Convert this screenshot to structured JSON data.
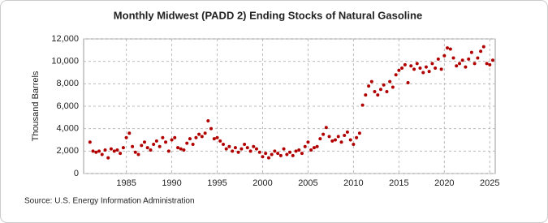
{
  "chart_data": {
    "type": "scatter",
    "title": "Monthly Midwest (PADD 2) Ending Stocks of Natural Gasoline",
    "y_label": "Thousand Barrels",
    "source": "Source: U.S. Energy Information Administration",
    "color": "#b00000",
    "grid": true,
    "xlim": [
      1980.3,
      2025.6
    ],
    "xticks": [
      1985,
      1990,
      1995,
      2000,
      2005,
      2010,
      2015,
      2020,
      2025
    ],
    "ylim": [
      0,
      12000
    ],
    "yticks": [
      0,
      {
        "value": 2000,
        "label": "2,000"
      },
      {
        "value": 4000,
        "label": "4,000"
      },
      {
        "value": 6000,
        "label": "6,000"
      },
      {
        "value": 8000,
        "label": "8,000"
      },
      {
        "value": 10000,
        "label": "10,000"
      },
      {
        "value": 12000,
        "label": "12,000"
      }
    ],
    "x": [
      1981,
      1981.33,
      1981.67,
      1982,
      1982.33,
      1982.67,
      1983,
      1983.33,
      1983.67,
      1984,
      1984.33,
      1984.67,
      1985,
      1985.33,
      1985.67,
      1986,
      1986.33,
      1986.67,
      1987,
      1987.33,
      1987.67,
      1988,
      1988.33,
      1988.67,
      1989,
      1989.33,
      1989.67,
      1990,
      1990.33,
      1990.67,
      1991,
      1991.33,
      1991.67,
      1992,
      1992.33,
      1992.67,
      1993,
      1993.33,
      1993.67,
      1994,
      1994.33,
      1994.67,
      1995,
      1995.33,
      1995.67,
      1996,
      1996.33,
      1996.67,
      1997,
      1997.33,
      1997.67,
      1998,
      1998.33,
      1998.67,
      1999,
      1999.33,
      1999.67,
      2000,
      2000.33,
      2000.67,
      2001,
      2001.33,
      2001.67,
      2002,
      2002.33,
      2002.67,
      2003,
      2003.33,
      2003.67,
      2004,
      2004.33,
      2004.67,
      2005,
      2005.33,
      2005.67,
      2006,
      2006.33,
      2006.67,
      2007,
      2007.33,
      2007.67,
      2008,
      2008.33,
      2008.67,
      2009,
      2009.33,
      2009.67,
      2010,
      2010.33,
      2010.67,
      2011,
      2011.33,
      2011.67,
      2012,
      2012.33,
      2012.67,
      2013,
      2013.33,
      2013.67,
      2014,
      2014.33,
      2014.67,
      2015,
      2015.33,
      2015.67,
      2016,
      2016.33,
      2016.67,
      2017,
      2017.33,
      2017.67,
      2018,
      2018.33,
      2018.67,
      2019,
      2019.33,
      2019.67,
      2020,
      2020.33,
      2020.67,
      2021,
      2021.33,
      2021.67,
      2022,
      2022.33,
      2022.67,
      2023,
      2023.33,
      2023.67,
      2024,
      2024.33,
      2024.67,
      2025,
      2025.33
    ],
    "values": [
      2800,
      2000,
      1900,
      2000,
      1700,
      2100,
      1400,
      2200,
      2000,
      2100,
      1800,
      2300,
      3200,
      3600,
      2400,
      1900,
      1700,
      2500,
      2800,
      2300,
      2100,
      2600,
      2900,
      2400,
      3200,
      2800,
      2000,
      3000,
      3200,
      2300,
      2200,
      2100,
      2700,
      3100,
      2600,
      3200,
      3500,
      3300,
      3600,
      4700,
      4000,
      3100,
      3200,
      2900,
      2600,
      2200,
      2400,
      2000,
      2300,
      1900,
      2200,
      2600,
      2300,
      2000,
      2400,
      2200,
      1900,
      1500,
      1800,
      1400,
      1700,
      2000,
      1800,
      1600,
      2200,
      1700,
      1900,
      1600,
      2000,
      2100,
      1800,
      2400,
      2800,
      2100,
      2300,
      2400,
      3100,
      3500,
      4100,
      3300,
      2900,
      3000,
      3300,
      2800,
      3400,
      3700,
      3000,
      2600,
      3200,
      3600,
      6100,
      7000,
      7800,
      8200,
      7300,
      7000,
      7500,
      7900,
      7300,
      8200,
      7700,
      8800,
      9200,
      9400,
      9700,
      8100,
      9600,
      9300,
      9800,
      9400,
      9000,
      9500,
      9100,
      9800,
      9400,
      10200,
      9300,
      10500,
      11200,
      11100,
      10300,
      9600,
      9800,
      10100,
      9500,
      10200,
      10800,
      9800,
      10300,
      10900,
      11300,
      9800,
      9700,
      10100
    ]
  }
}
